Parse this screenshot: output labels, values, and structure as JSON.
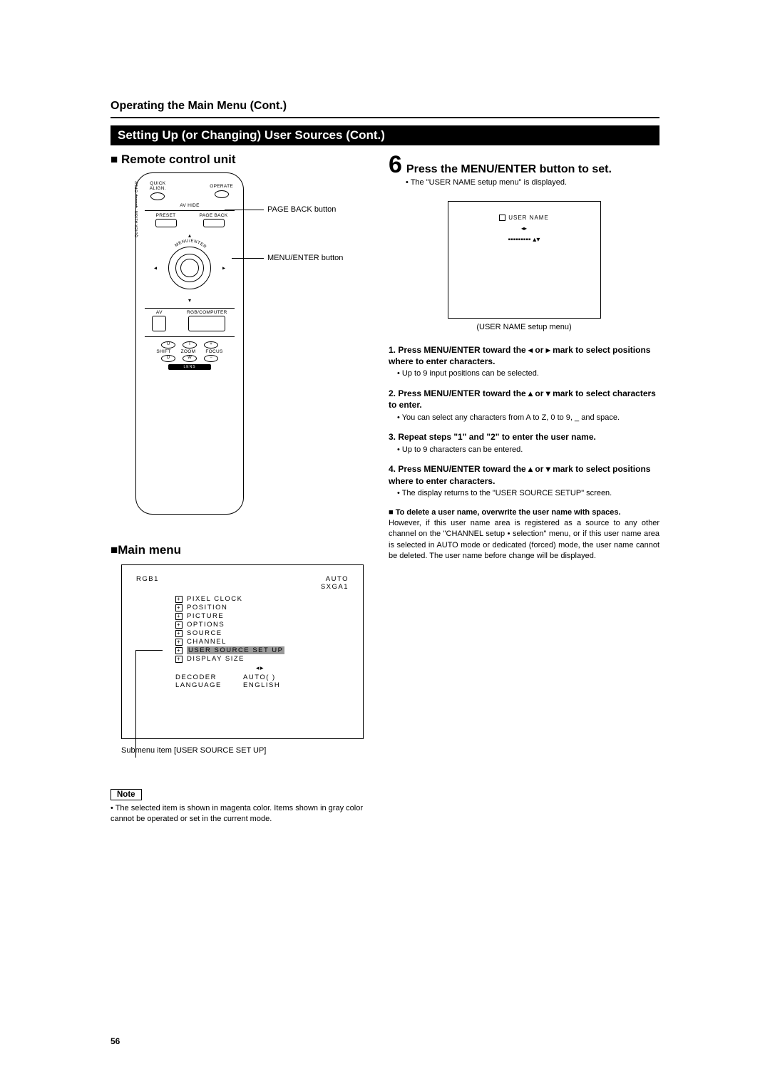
{
  "header": {
    "section": "Operating the Main Menu (Cont.)",
    "blackbar": "Setting Up (or Changing) User Sources (Cont.)"
  },
  "left": {
    "remote_title": "■ Remote control unit",
    "callout_pageback": "PAGE BACK button",
    "callout_menuenter": "MENU/ENTER button",
    "rc": {
      "quick_align": "QUICK\nALIGN.",
      "operate": "OPERATE",
      "av_hide": "AV HIDE",
      "preset": "PRESET",
      "page_back": "PAGE BACK",
      "menu_enter": "MENU/ENTER",
      "av": "AV",
      "rgb": "RGB/COMPUTER",
      "shift": "SHIFT",
      "zoom": "ZOOM",
      "focus": "FOCUS",
      "u": "U",
      "t": "T",
      "plus": "+",
      "d": "D",
      "w": "W",
      "minus": "−",
      "lens": "LENS",
      "side": "OPER.  QUICK\n          ALIGN."
    },
    "main_menu_title": "■Main menu",
    "menu": {
      "top_left": "RGB1",
      "top_right_1": "AUTO",
      "top_right_2": "SXGA1",
      "items": [
        "PIXEL CLOCK",
        "POSITION",
        "PICTURE",
        "OPTIONS",
        "SOURCE",
        "CHANNEL",
        "USER SOURCE SET UP",
        "DISPLAY SIZE"
      ],
      "highlighted_index": 6,
      "decoder_label": "DECODER",
      "decoder_value": "AUTO(        )",
      "language_label": "LANGUAGE",
      "language_value": "ENGLISH"
    },
    "submenu_caption": "Submenu item [USER SOURCE SET UP]",
    "note_label": "Note",
    "note_text": "• The selected item is shown in magenta color. Items shown in gray color cannot be operated or set in the current mode."
  },
  "right": {
    "step_num": "6",
    "step_title": "Press the MENU/ENTER button to set.",
    "step_bullet": "• The \"USER NAME setup menu\" is displayed.",
    "user_menu_label": "USER NAME",
    "user_menu_arrows": "◂▸",
    "user_menu_bars": "▪▪▪▪▪▪▪▪▪  ▴▾",
    "user_caption": "(USER NAME setup menu)",
    "substeps": [
      {
        "title": "1. Press MENU/ENTER toward the ◂ or ▸ mark to select positions where to enter characters.",
        "body": "• Up to 9 input positions can be selected."
      },
      {
        "title": "2. Press MENU/ENTER toward the ▴ or ▾ mark to select characters to enter.",
        "body": "• You can select any characters from A to Z, 0  to 9, _ and space."
      },
      {
        "title": "3. Repeat steps \"1\" and \"2\" to enter the user name.",
        "body": "• Up to 9 characters can be entered."
      },
      {
        "title": "4. Press MENU/ENTER toward the ▴ or ▾ mark to select positions where to enter characters.",
        "body": "• The display returns to the \"USER SOURCE SETUP\" screen."
      }
    ],
    "delete": {
      "title": "■ To delete a user name, overwrite the user name with spaces.",
      "body": "However, if this user name area is registered as a source to any other channel on the \"CHANNEL setup • selection\" menu, or if this user name area is selected in AUTO mode or dedicated (forced) mode, the user name cannot be deleted. The user name before change will be displayed."
    }
  },
  "page_num": "56"
}
